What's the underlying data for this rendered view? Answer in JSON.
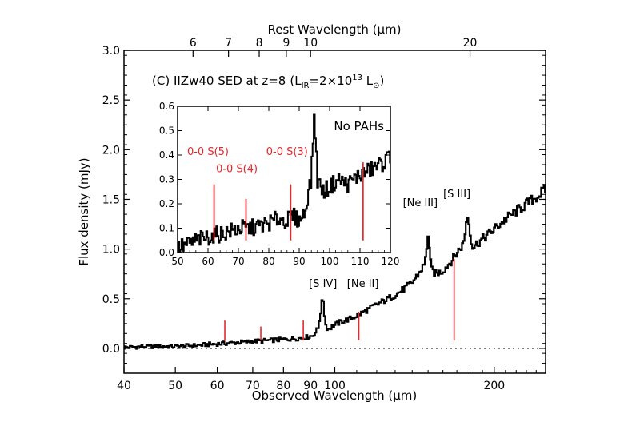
{
  "chart_data": [
    {
      "type": "line",
      "title": "(C)  IIZw40 SED at z=8",
      "title_lir": "(L",
      "title_lir_sub": "IR",
      "title_lir_val": "=2×10",
      "title_lir_exp": "13",
      "title_lsun": " L",
      "title_lsun_sub": "⊙",
      "title_close": ")",
      "xlabel": "Observed Wavelength (μm)",
      "ylabel": "Flux density (mJy)",
      "top_xlabel": "Rest Wavelength (μm)",
      "x_scale": "log",
      "xlim": [
        40,
        250
      ],
      "ylim": [
        -0.25,
        3.0
      ],
      "xticks": [
        40,
        50,
        60,
        70,
        80,
        90,
        100,
        200
      ],
      "xtick_labels": [
        "40",
        "50",
        "60",
        "70",
        "80",
        "90",
        "100",
        "200"
      ],
      "yticks": [
        0.0,
        0.5,
        1.0,
        1.5,
        2.0,
        2.5,
        3.0
      ],
      "ytick_labels": [
        "0.0",
        "0.5",
        "1.0",
        "1.5",
        "2.0",
        "2.5",
        "3.0"
      ],
      "top_ticks_rest": [
        6,
        7,
        8,
        9,
        10,
        20
      ],
      "top_tick_labels": [
        "6",
        "7",
        "8",
        "9",
        "10",
        "20"
      ],
      "redshift_factor": 9,
      "zero_line": true,
      "series": [
        {
          "color": "#000000",
          "x": [
            40,
            45,
            50,
            55,
            58,
            62,
            66,
            70,
            75,
            80,
            85,
            88,
            91,
            93,
            95,
            96,
            97,
            99,
            102,
            107,
            112,
            118,
            125,
            132,
            140,
            148,
            150,
            152,
            155,
            160,
            166,
            172,
            175,
            178,
            182,
            190,
            200,
            210,
            220,
            230,
            240,
            250
          ],
          "y": [
            0.01,
            0.02,
            0.02,
            0.03,
            0.04,
            0.05,
            0.06,
            0.07,
            0.08,
            0.09,
            0.1,
            0.11,
            0.13,
            0.2,
            0.52,
            0.25,
            0.19,
            0.22,
            0.26,
            0.3,
            0.35,
            0.42,
            0.49,
            0.56,
            0.66,
            0.85,
            1.15,
            0.8,
            0.75,
            0.78,
            0.88,
            1.0,
            1.05,
            1.35,
            1.02,
            1.1,
            1.2,
            1.3,
            1.38,
            1.45,
            1.52,
            1.6
          ]
        }
      ],
      "red_markers": [
        {
          "x": 62,
          "y": 0.28
        },
        {
          "x": 72.5,
          "y": 0.22
        },
        {
          "x": 87.2,
          "y": 0.28
        },
        {
          "x": 111,
          "y": 0.37
        },
        {
          "x": 168,
          "y": 0.9
        }
      ],
      "annotations": [
        {
          "text": "[S IV]",
          "x": 95,
          "y": 0.62
        },
        {
          "text": "[Ne II]",
          "x": 113,
          "y": 0.62
        },
        {
          "text": "[Ne III]",
          "x": 145,
          "y": 1.43
        },
        {
          "text": "[S III]",
          "x": 170,
          "y": 1.52
        }
      ]
    },
    {
      "type": "line",
      "inset": true,
      "annotation": "No PAHs",
      "x_scale": "linear",
      "xlim": [
        50,
        120
      ],
      "ylim": [
        0,
        0.6
      ],
      "xticks": [
        50,
        60,
        70,
        80,
        90,
        100,
        110,
        120
      ],
      "xtick_labels": [
        "50",
        "60",
        "70",
        "80",
        "90",
        "100",
        "110",
        "120"
      ],
      "yticks": [
        0.0,
        0.1,
        0.2,
        0.3,
        0.4,
        0.5,
        0.6
      ],
      "ytick_labels": [
        "0.0",
        "0.1",
        "0.2",
        "0.3",
        "0.4",
        "0.5",
        "0.6"
      ],
      "series": [
        {
          "color": "#000000",
          "x": [
            50,
            53,
            56,
            59,
            62,
            65,
            68,
            71,
            74,
            77,
            80,
            83,
            86,
            88,
            90,
            92,
            93,
            94,
            95,
            96,
            98,
            100,
            103,
            106,
            109,
            112,
            115,
            118,
            120
          ],
          "y": [
            0.02,
            0.03,
            0.05,
            0.06,
            0.07,
            0.08,
            0.09,
            0.1,
            0.1,
            0.11,
            0.12,
            0.14,
            0.13,
            0.15,
            0.13,
            0.17,
            0.25,
            0.3,
            0.58,
            0.3,
            0.25,
            0.27,
            0.3,
            0.28,
            0.31,
            0.33,
            0.35,
            0.37,
            0.4
          ]
        }
      ],
      "red_markers": [
        {
          "x": 62,
          "y": 0.28
        },
        {
          "x": 72.5,
          "y": 0.22
        },
        {
          "x": 87.2,
          "y": 0.28
        },
        {
          "x": 111,
          "y": 0.37
        }
      ],
      "annotations": [
        {
          "text": "0-0 S(5)",
          "x": 60,
          "y": 0.4
        },
        {
          "text": "0-0 S(4)",
          "x": 69.5,
          "y": 0.33
        },
        {
          "text": "0-0 S(3)",
          "x": 86,
          "y": 0.4
        }
      ]
    }
  ]
}
